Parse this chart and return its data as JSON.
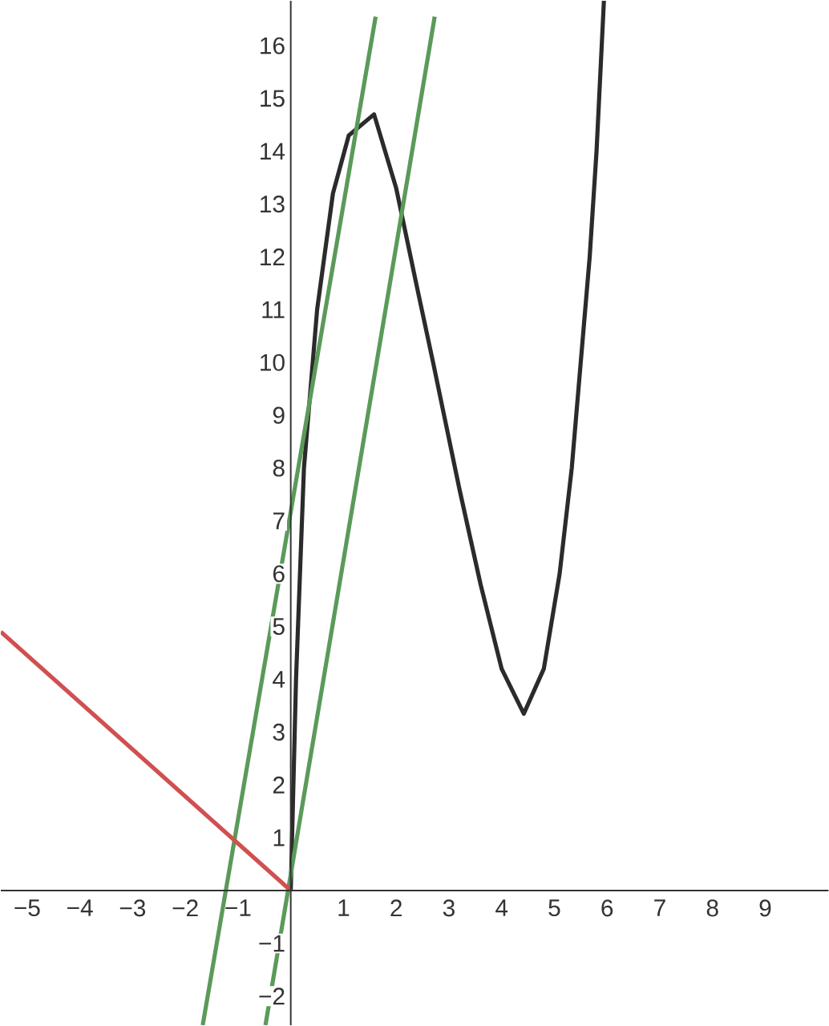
{
  "chart_data": {
    "type": "line",
    "xlim": [
      -5.5,
      10.2
    ],
    "ylim": [
      -2.55,
      16.85
    ],
    "xticks": [
      {
        "value": -5,
        "label": "−5"
      },
      {
        "value": -4,
        "label": "−4"
      },
      {
        "value": -3,
        "label": "−3"
      },
      {
        "value": -2,
        "label": "−2"
      },
      {
        "value": -1,
        "label": "−1"
      },
      1,
      2,
      3,
      4,
      5,
      6,
      7,
      8,
      9
    ],
    "yticks": [
      {
        "value": -2,
        "label": "−2"
      },
      {
        "value": -1,
        "label": "−1"
      },
      1,
      2,
      3,
      4,
      5,
      6,
      7,
      8,
      9,
      10,
      11,
      12,
      13,
      14,
      15,
      16
    ],
    "series": [
      {
        "color": "#2b2b2b",
        "x": [
          0,
          0.1,
          0.25,
          0.5,
          0.8,
          1.1,
          1.58,
          2.0,
          2.4,
          2.7,
          3.2,
          3.6,
          4.0,
          4.42,
          4.8,
          5.1,
          5.33,
          5.5,
          5.67,
          5.8,
          5.94
        ],
        "values": [
          0,
          4,
          8,
          11,
          13.2,
          14.3,
          14.7,
          13.3,
          11.4,
          10,
          7.6,
          5.8,
          4.2,
          3.35,
          4.2,
          6,
          8,
          10,
          12,
          14,
          16.85
        ]
      },
      {
        "color": "#5a9a5a",
        "x": [
          -1.67,
          1.61
        ],
        "values": [
          -2.55,
          16.55
        ]
      },
      {
        "color": "#5a9a5a",
        "x": [
          -0.48,
          2.73
        ],
        "values": [
          -2.55,
          16.55
        ]
      },
      {
        "color": "#d05050",
        "x": [
          -5.5,
          0
        ],
        "values": [
          4.9,
          0
        ]
      }
    ]
  }
}
